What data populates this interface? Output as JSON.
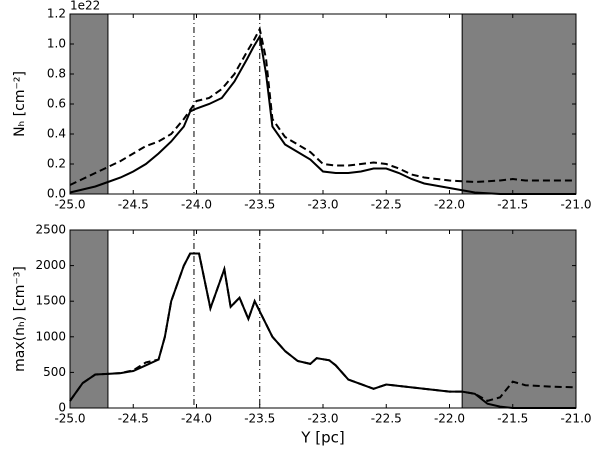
{
  "chart_data": [
    {
      "type": "line",
      "offset_text": "1e22",
      "ylabel": "Nₕ  [cm⁻²]",
      "x": [
        -25.0,
        -24.9,
        -24.8,
        -24.7,
        -24.6,
        -24.5,
        -24.4,
        -24.3,
        -24.2,
        -24.1,
        -24.05,
        -24.0,
        -23.9,
        -23.8,
        -23.7,
        -23.6,
        -23.55,
        -23.5,
        -23.45,
        -23.4,
        -23.3,
        -23.2,
        -23.1,
        -23.0,
        -22.9,
        -22.8,
        -22.7,
        -22.6,
        -22.5,
        -22.4,
        -22.3,
        -22.2,
        -22.0,
        -21.8,
        -21.6,
        -21.5,
        -21.4,
        -21.2,
        -21.0
      ],
      "series": [
        {
          "color": "#000000",
          "dash": "solid",
          "values": [
            0.01,
            0.03,
            0.05,
            0.08,
            0.11,
            0.15,
            0.2,
            0.27,
            0.35,
            0.45,
            0.55,
            0.57,
            0.6,
            0.64,
            0.75,
            0.9,
            0.98,
            1.05,
            0.8,
            0.45,
            0.33,
            0.28,
            0.23,
            0.15,
            0.14,
            0.14,
            0.15,
            0.17,
            0.17,
            0.14,
            0.1,
            0.07,
            0.04,
            0.01,
            0,
            0,
            0,
            0,
            0
          ]
        },
        {
          "color": "#000000",
          "dash": "dashed",
          "values": [
            0.06,
            0.1,
            0.14,
            0.18,
            0.22,
            0.27,
            0.32,
            0.35,
            0.4,
            0.5,
            0.56,
            0.62,
            0.64,
            0.7,
            0.8,
            0.95,
            1.02,
            1.1,
            0.9,
            0.5,
            0.38,
            0.33,
            0.28,
            0.2,
            0.19,
            0.19,
            0.2,
            0.21,
            0.2,
            0.17,
            0.13,
            0.11,
            0.09,
            0.08,
            0.09,
            0.1,
            0.09,
            0.09,
            0.09
          ]
        }
      ],
      "shaded": [
        [
          -25.0,
          -24.7
        ],
        [
          -21.9,
          -21.0
        ]
      ],
      "shade_color": "#808080",
      "vlines": [
        -24.02,
        -23.5
      ],
      "xlim": [
        -25.0,
        -21.0
      ],
      "xticks": [
        {
          "value": -25.0,
          "label": "-25.0"
        },
        {
          "value": -24.5,
          "label": "-24.5"
        },
        {
          "value": -24.0,
          "label": "-24.0"
        },
        {
          "value": -23.5,
          "label": "-23.5"
        },
        {
          "value": -23.0,
          "label": "-23.0"
        },
        {
          "value": -22.5,
          "label": "-22.5"
        },
        {
          "value": -22.0,
          "label": "-22.0"
        },
        {
          "value": -21.5,
          "label": "-21.5"
        },
        {
          "value": -21.0,
          "label": "-21.0"
        }
      ],
      "ylim": [
        0,
        1.2
      ],
      "yticks": [
        {
          "value": 0,
          "label": "0.0"
        },
        {
          "value": 0.2,
          "label": "0.2"
        },
        {
          "value": 0.4,
          "label": "0.4"
        },
        {
          "value": 0.6,
          "label": "0.6"
        },
        {
          "value": 0.8,
          "label": "0.8"
        },
        {
          "value": 1.0,
          "label": "1.0"
        },
        {
          "value": 1.2,
          "label": "1.2"
        }
      ]
    },
    {
      "type": "line",
      "ylabel": "max(nₕ)  [cm⁻³]",
      "xlabel": "Y [pc]",
      "x": [
        -25.0,
        -24.9,
        -24.8,
        -24.7,
        -24.6,
        -24.5,
        -24.4,
        -24.3,
        -24.25,
        -24.2,
        -24.1,
        -24.05,
        -23.98,
        -23.89,
        -23.78,
        -23.73,
        -23.66,
        -23.59,
        -23.54,
        -23.4,
        -23.3,
        -23.2,
        -23.1,
        -23.05,
        -22.95,
        -22.9,
        -22.8,
        -22.6,
        -22.5,
        -22.3,
        -22.0,
        -21.9,
        -21.8,
        -21.7,
        -21.6,
        -21.5,
        -21.4,
        -21.2,
        -21.0
      ],
      "series": [
        {
          "color": "#000000",
          "dash": "solid",
          "values": [
            100,
            350,
            470,
            480,
            490,
            520,
            600,
            680,
            1000,
            1500,
            2000,
            2170,
            2170,
            1400,
            1950,
            1420,
            1550,
            1250,
            1500,
            1000,
            800,
            660,
            620,
            700,
            670,
            600,
            400,
            270,
            330,
            290,
            230,
            230,
            200,
            60,
            20,
            0,
            0,
            0,
            0
          ]
        },
        {
          "color": "#000000",
          "dash": "dashed",
          "values": [
            100,
            350,
            470,
            480,
            490,
            530,
            640,
            680,
            1000,
            1500,
            2000,
            2170,
            2170,
            1400,
            1950,
            1420,
            1550,
            1250,
            1500,
            1000,
            800,
            660,
            620,
            700,
            670,
            600,
            400,
            270,
            330,
            290,
            230,
            230,
            200,
            100,
            150,
            370,
            320,
            300,
            290
          ]
        }
      ],
      "shaded": [
        [
          -25.0,
          -24.7
        ],
        [
          -21.9,
          -21.0
        ]
      ],
      "shade_color": "#808080",
      "vlines": [
        -24.02,
        -23.5
      ],
      "xlim": [
        -25.0,
        -21.0
      ],
      "xticks": [
        {
          "value": -25.0,
          "label": "-25.0"
        },
        {
          "value": -24.5,
          "label": "-24.5"
        },
        {
          "value": -24.0,
          "label": "-24.0"
        },
        {
          "value": -23.5,
          "label": "-23.5"
        },
        {
          "value": -23.0,
          "label": "-23.0"
        },
        {
          "value": -22.5,
          "label": "-22.5"
        },
        {
          "value": -22.0,
          "label": "-22.0"
        },
        {
          "value": -21.5,
          "label": "-21.5"
        },
        {
          "value": -21.0,
          "label": "-21.0"
        }
      ],
      "ylim": [
        0,
        2500
      ],
      "yticks": [
        0,
        500,
        1000,
        1500,
        2000,
        2500
      ]
    }
  ]
}
